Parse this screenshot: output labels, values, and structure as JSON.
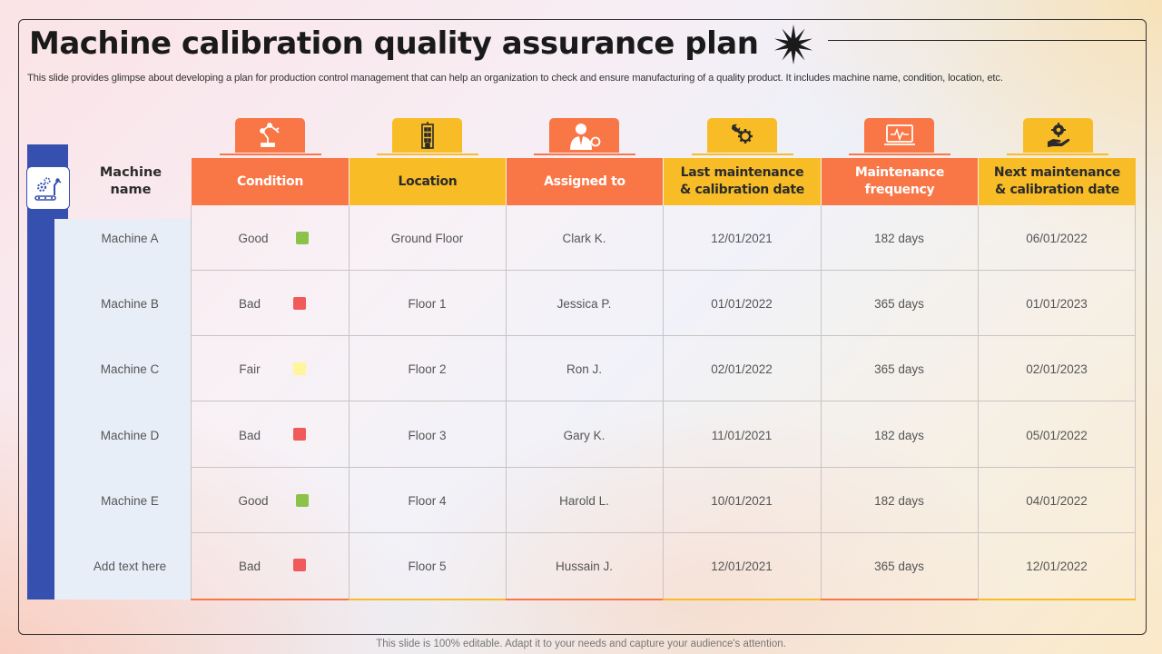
{
  "title": "Machine calibration quality assurance plan",
  "subtitle": "This slide provides glimpse about developing a plan for production control management that can help an organization to check and ensure manufacturing of a quality product. It includes machine name, condition, location, etc.",
  "footer": "This slide is 100% editable. Adapt it to your needs and capture your audience's attention.",
  "table": {
    "row_header_line1": "Machine",
    "row_header_line2": "name",
    "columns": [
      {
        "line1": "Condition",
        "line2": "",
        "color": "#f97646",
        "icon": "robot-arm-icon"
      },
      {
        "line1": "Location",
        "line2": "",
        "color": "#f8bd26",
        "icon": "building-icon"
      },
      {
        "line1": "Assigned to",
        "line2": "",
        "color": "#f97646",
        "icon": "technician-icon"
      },
      {
        "line1": "Last maintenance",
        "line2": "& calibration date",
        "color": "#f8bd26",
        "icon": "wrench-gear-icon"
      },
      {
        "line1": "Maintenance",
        "line2": "frequency",
        "color": "#f97646",
        "icon": "laptop-pulse-icon"
      },
      {
        "line1": "Next maintenance",
        "line2": "& calibration date",
        "color": "#f8bd26",
        "icon": "gear-hand-icon"
      }
    ],
    "rows": [
      {
        "name": "Machine A",
        "condition": "Good",
        "status_color": "#8bc34a",
        "location": "Ground Floor",
        "assigned": "Clark K.",
        "last": "12/01/2021",
        "frequency": "182 days",
        "next": "06/01/2022"
      },
      {
        "name": "Machine B",
        "condition": "Bad",
        "status_color": "#f05a5a",
        "location": "Floor 1",
        "assigned": "Jessica P.",
        "last": "01/01/2022",
        "frequency": "365 days",
        "next": "01/01/2023"
      },
      {
        "name": "Machine C",
        "condition": "Fair",
        "status_color": "#fff59a",
        "location": "Floor 2",
        "assigned": "Ron J.",
        "last": "02/01/2022",
        "frequency": "365 days",
        "next": "02/01/2023"
      },
      {
        "name": "Machine D",
        "condition": "Bad",
        "status_color": "#f05a5a",
        "location": "Floor 3",
        "assigned": "Gary K.",
        "last": "11/01/2021",
        "frequency": "182 days",
        "next": "05/01/2022"
      },
      {
        "name": "Machine E",
        "condition": "Good",
        "status_color": "#8bc34a",
        "location": "Floor 4",
        "assigned": "Harold L.",
        "last": "10/01/2021",
        "frequency": "182 days",
        "next": "04/01/2022"
      },
      {
        "name": "Add text here",
        "condition": "Bad",
        "status_color": "#f05a5a",
        "location": "Floor 5",
        "assigned": "Hussain J.",
        "last": "12/01/2021",
        "frequency": "365 days",
        "next": "12/01/2022"
      }
    ]
  },
  "colors": {
    "orange": "#f97646",
    "yellow": "#f8bd26",
    "blue": "#3550ae"
  }
}
